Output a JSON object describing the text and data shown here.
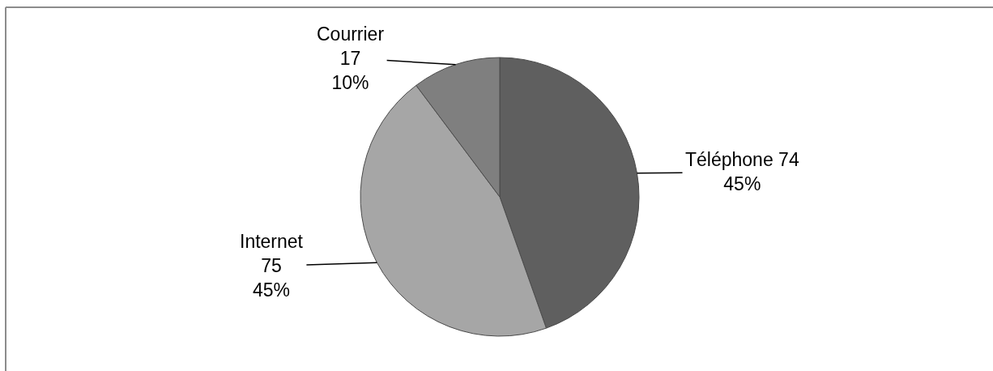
{
  "chart_data": {
    "type": "pie",
    "categories": [
      "Téléphone",
      "Internet",
      "Courrier"
    ],
    "values": [
      74,
      75,
      17
    ],
    "colors": [
      "#5f5f5f",
      "#a6a6a6",
      "#7f7f7f"
    ],
    "value_labels": [
      "74\n45%",
      "75\n45%",
      "17\n10%"
    ],
    "legend": false
  }
}
